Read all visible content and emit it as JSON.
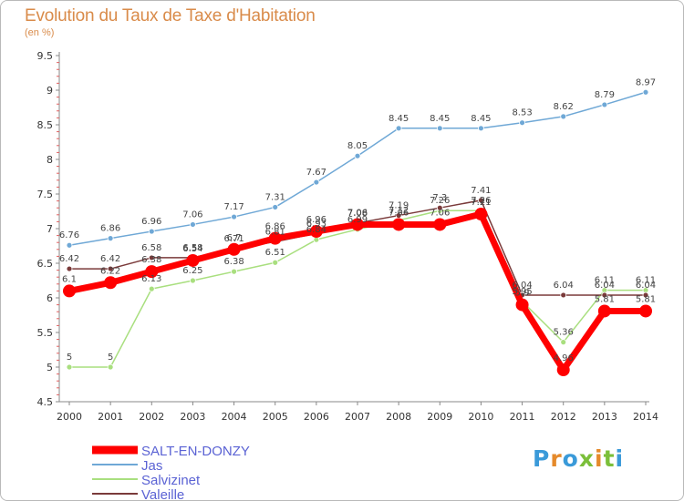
{
  "title": "Evolution du Taux de Taxe d'Habitation",
  "subtitle": "(en %)",
  "logo": {
    "text": "Proxiti",
    "colors": [
      "#3a9ad9",
      "#e58a2b",
      "#3a9ad9",
      "#7bbf3a",
      "#e58a2b",
      "#7bbf3a",
      "#3a9ad9"
    ]
  },
  "chart_data": {
    "type": "line",
    "x": [
      "2000",
      "2001",
      "2002",
      "2003",
      "2004",
      "2005",
      "2006",
      "2007",
      "2008",
      "2009",
      "2010",
      "2011",
      "2012",
      "2013",
      "2014"
    ],
    "ylim": [
      4.5,
      9.5
    ],
    "yticks": [
      "4.5",
      "5",
      "5.5",
      "6",
      "6.5",
      "7",
      "7.5",
      "8",
      "8.5",
      "9",
      "9.5"
    ],
    "grid": false,
    "legend_position": "bottom-left",
    "series": [
      {
        "name": "SALT-EN-DONZY",
        "color": "#ff0000",
        "values": [
          6.1,
          6.22,
          6.38,
          6.54,
          6.7,
          6.86,
          6.96,
          7.06,
          7.06,
          7.06,
          7.21,
          5.9,
          4.96,
          5.81,
          5.81
        ],
        "labels": [
          "6.1",
          "6.22",
          "6.38",
          "6.54",
          "6.7",
          "6.86",
          "6.96",
          "7.06",
          "7.06",
          "7.06",
          "7.21",
          "5.9",
          "4.96",
          "5.81",
          "5.81"
        ]
      },
      {
        "name": "Jas",
        "color": "#6fa8d6",
        "values": [
          6.76,
          6.86,
          6.96,
          7.06,
          7.17,
          7.31,
          7.67,
          8.05,
          8.45,
          8.45,
          8.45,
          8.53,
          8.62,
          8.79,
          8.97
        ],
        "labels": [
          "6.76",
          "6.86",
          "6.96",
          "7.06",
          "7.17",
          "7.31",
          "7.67",
          "8.05",
          "8.45",
          "8.45",
          "8.45",
          "8.53",
          "8.62",
          "8.79",
          "8.97"
        ]
      },
      {
        "name": "Salvizinet",
        "color": "#a9df7f",
        "values": [
          5,
          5,
          6.13,
          6.25,
          6.38,
          6.51,
          6.84,
          6.99,
          7.12,
          7.26,
          7.26,
          5.95,
          5.36,
          6.11,
          6.11
        ],
        "labels": [
          "5",
          "5",
          "6.13",
          "6.25",
          "6.38",
          "6.51",
          "6.84",
          "6.99",
          "7.12",
          "7.26",
          "7.26",
          "5.95",
          "5.36",
          "6.11",
          "6.11"
        ]
      },
      {
        "name": "Valeille",
        "color": "#7a3a3a",
        "values": [
          6.42,
          6.42,
          6.58,
          6.58,
          6.71,
          6.81,
          6.93,
          7.08,
          7.19,
          7.3,
          7.41,
          6.04,
          6.04,
          6.04,
          6.04
        ],
        "labels": [
          "6.42",
          "6.42",
          "6.58",
          "6.58",
          "6.71",
          "6.81",
          "6.93",
          "7.08",
          "7.19",
          "7.3",
          "7.41",
          "6.04",
          "6.04",
          "6.04",
          "6.04"
        ]
      }
    ]
  }
}
